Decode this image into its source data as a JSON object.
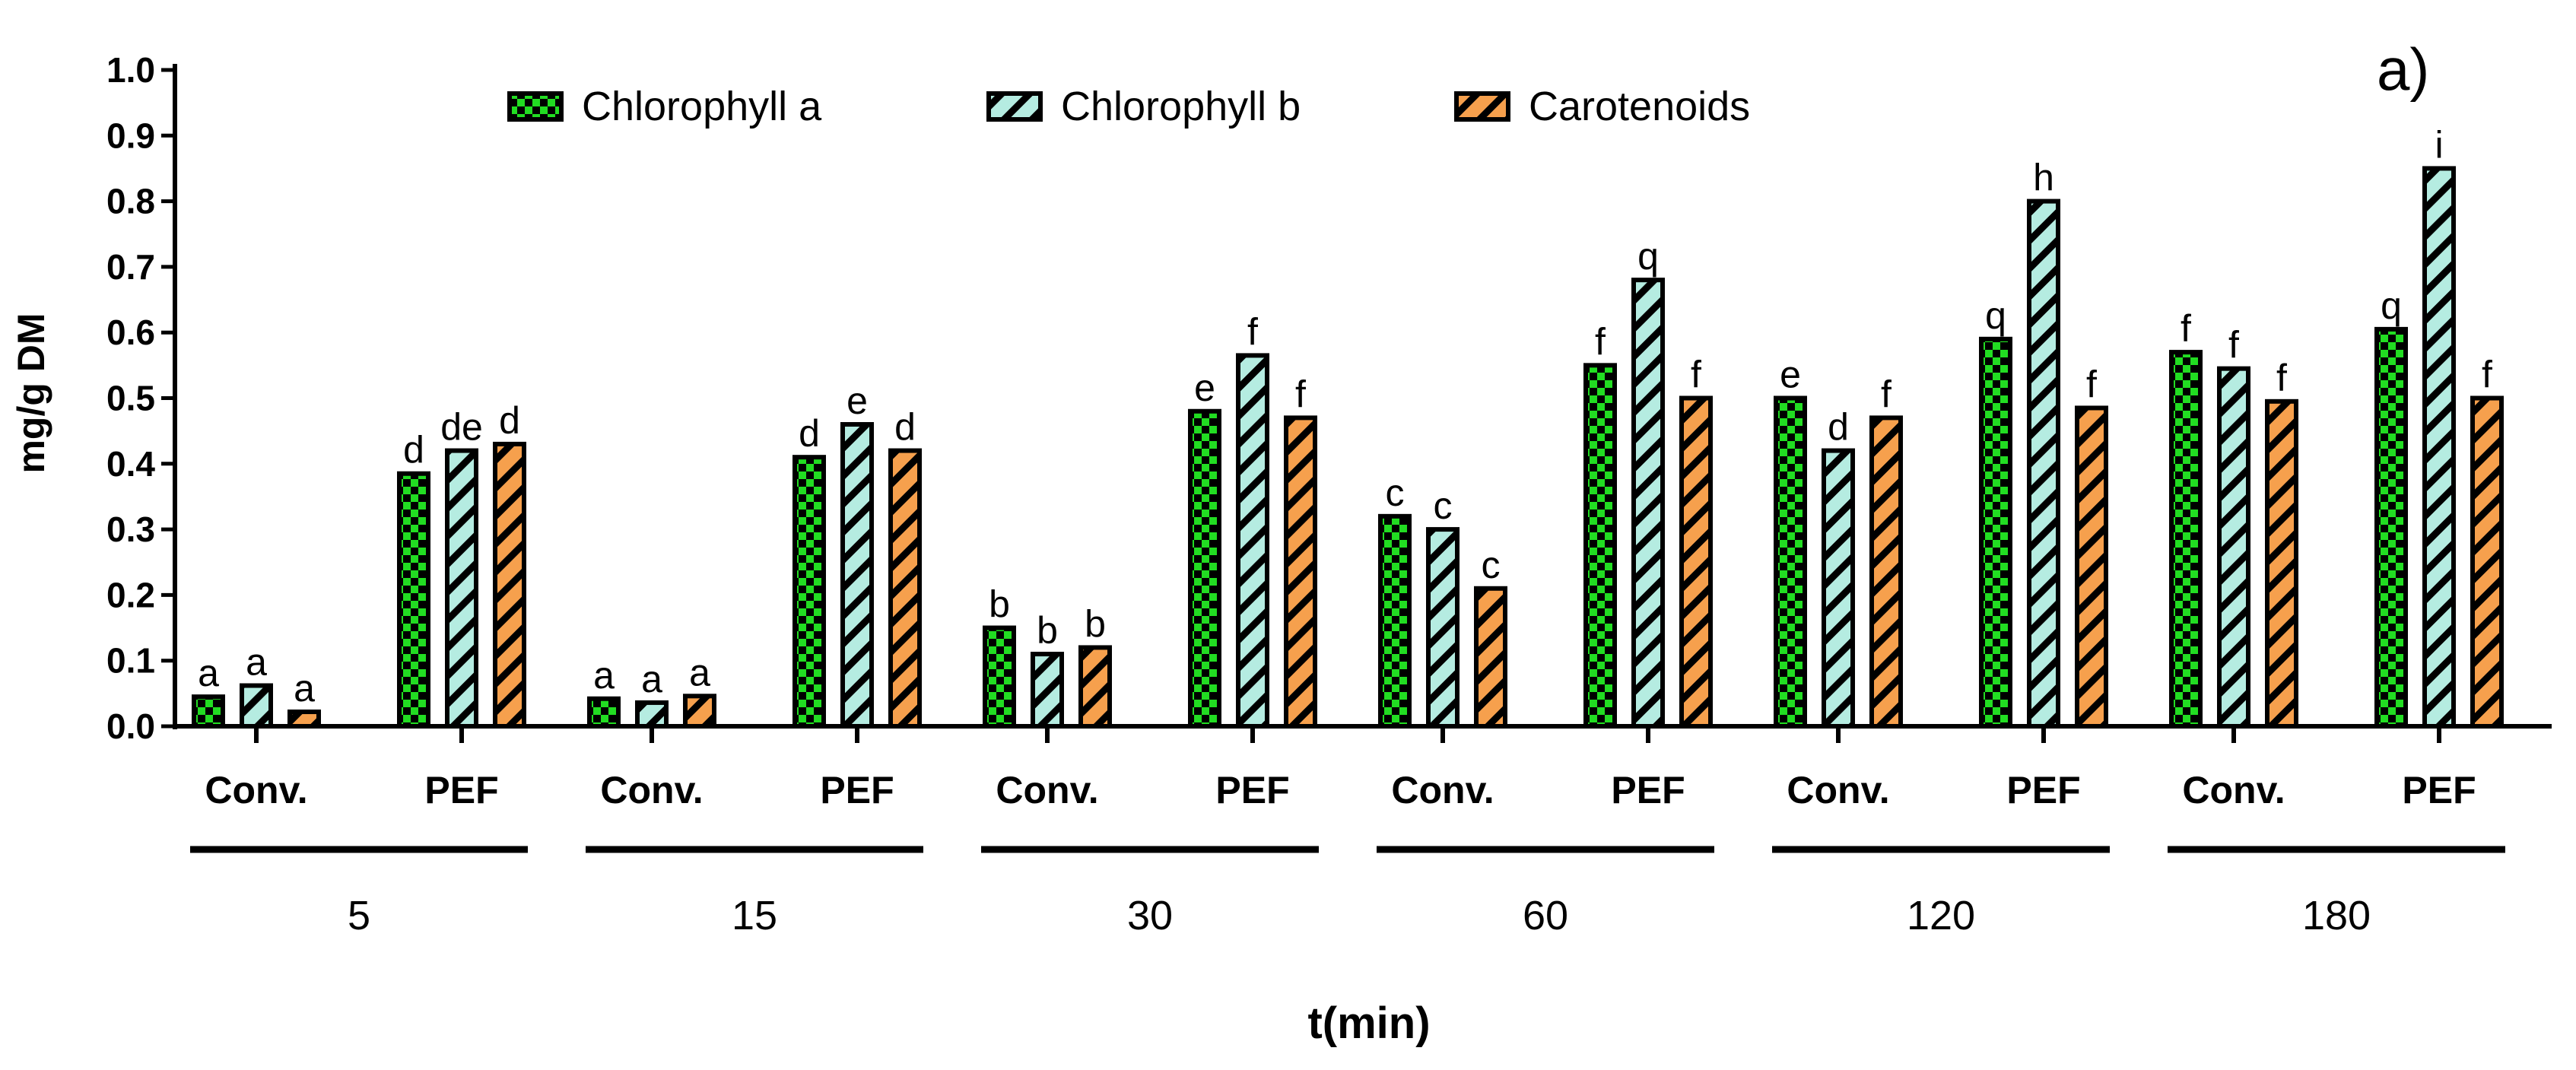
{
  "chart_data": {
    "type": "bar",
    "panel_label": "a)",
    "ylabel": "mg/g DM",
    "xlabel": "t(min)",
    "ylim": [
      0,
      1.0
    ],
    "yticks": [
      "0.0",
      "0.1",
      "0.2",
      "0.3",
      "0.4",
      "0.5",
      "0.6",
      "0.7",
      "0.8",
      "0.9",
      "1.0"
    ],
    "legend_position": "top-center",
    "times": [
      "5",
      "15",
      "30",
      "60",
      "120",
      "180"
    ],
    "methods": [
      "Conv.",
      "PEF"
    ],
    "series": [
      {
        "name": "Chlorophyll a",
        "color": "#22dd22",
        "pattern": "checker",
        "values": [
          0.045,
          0.385,
          0.042,
          0.41,
          0.15,
          0.48,
          0.32,
          0.55,
          0.5,
          0.59,
          0.57,
          0.605
        ],
        "labels": [
          "a",
          "d",
          "a",
          "d",
          "b",
          "e",
          "c",
          "f",
          "e",
          "q",
          "f",
          "q"
        ]
      },
      {
        "name": "Chlorophyll b",
        "color": "#b5ece1",
        "pattern": "diagonal",
        "values": [
          0.062,
          0.42,
          0.036,
          0.46,
          0.11,
          0.565,
          0.3,
          0.68,
          0.42,
          0.8,
          0.545,
          0.85
        ],
        "labels": [
          "a",
          "de",
          "a",
          "e",
          "b",
          "f",
          "c",
          "q",
          "d",
          "h",
          "f",
          "i"
        ]
      },
      {
        "name": "Carotenoids",
        "color": "#f6a04d",
        "pattern": "diagonal",
        "values": [
          0.022,
          0.43,
          0.046,
          0.42,
          0.12,
          0.47,
          0.21,
          0.5,
          0.47,
          0.485,
          0.495,
          0.5
        ],
        "labels": [
          "a",
          "d",
          "a",
          "d",
          "b",
          "f",
          "c",
          "f",
          "f",
          "f",
          "f",
          "f"
        ]
      }
    ]
  }
}
